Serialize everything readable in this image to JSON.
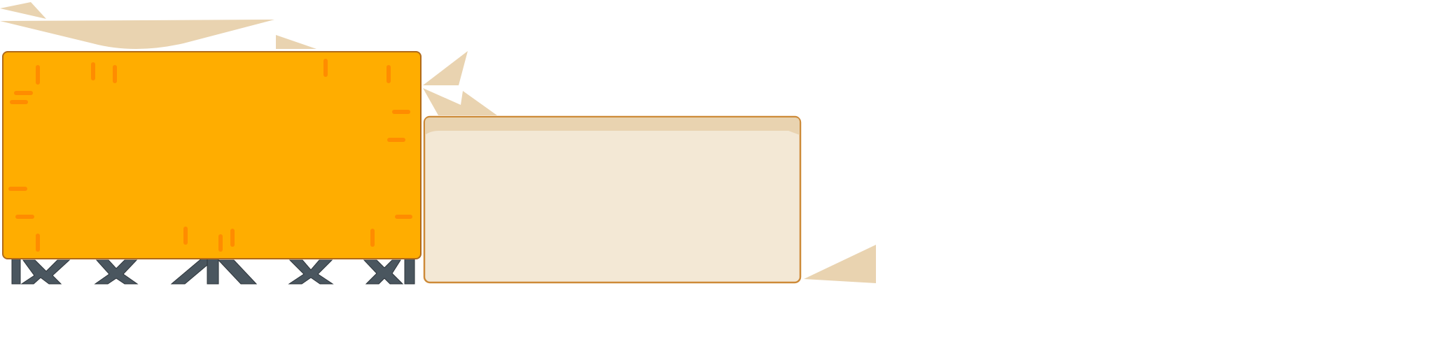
{
  "colors": {
    "background": "#ffffff",
    "orange_panel_fill": "#ffad00",
    "orange_panel_stroke": "#b06a1a",
    "orange_dash": "#ff8c00",
    "cream_panel_fill": "#f3e8d5",
    "cream_panel_band": "#e9d3b0",
    "cream_panel_stroke": "#cd8a38",
    "debris_fill": "#e9d3b0",
    "trestle_fill": "#4a565f",
    "trestle_stroke": "#2e353b"
  },
  "elements": {
    "large_panel": "orange-panel",
    "small_panel": "cream-panel",
    "debris": "paper-shard-shapes",
    "support": "x-brace-trestle"
  }
}
